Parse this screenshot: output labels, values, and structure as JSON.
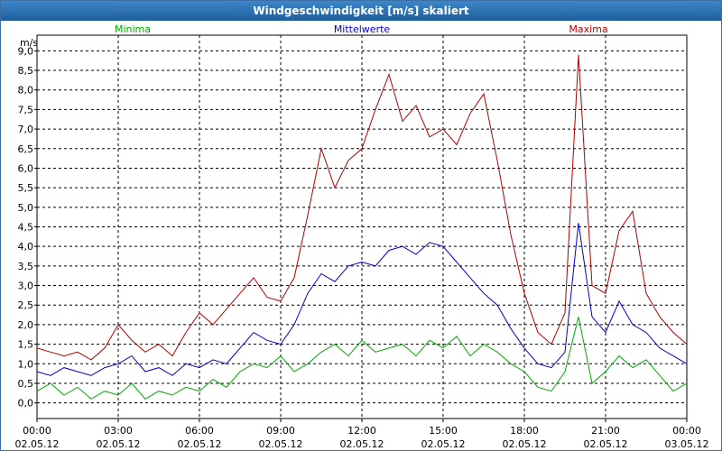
{
  "chart_data": {
    "type": "line",
    "title": "Windgeschwindigkeit [m/s] skaliert",
    "ylabel": "m/s",
    "ylim": [
      -0.4,
      9.4
    ],
    "yticks": [
      "0,0",
      "0,5",
      "1,0",
      "1,5",
      "2,0",
      "2,5",
      "3,0",
      "3,5",
      "4,0",
      "4,5",
      "5,0",
      "5,5",
      "6,0",
      "6,5",
      "7,0",
      "7,5",
      "8,0",
      "8,5",
      "9,0"
    ],
    "xticks": [
      {
        "time": "00:00",
        "date": "02.05.12"
      },
      {
        "time": "03:00",
        "date": "02.05.12"
      },
      {
        "time": "06:00",
        "date": "02.05.12"
      },
      {
        "time": "09:00",
        "date": "02.05.12"
      },
      {
        "time": "12:00",
        "date": "02.05.12"
      },
      {
        "time": "15:00",
        "date": "02.05.12"
      },
      {
        "time": "18:00",
        "date": "02.05.12"
      },
      {
        "time": "21:00",
        "date": "02.05.12"
      },
      {
        "time": "00:00",
        "date": "03.05.12"
      }
    ],
    "xlim": [
      0,
      24
    ],
    "grid": true,
    "series": [
      {
        "name": "Minima",
        "color": "#00aa00",
        "x": [
          0,
          0.5,
          1,
          1.5,
          2,
          2.5,
          3,
          3.5,
          4,
          4.5,
          5,
          5.5,
          6,
          6.5,
          7,
          7.5,
          8,
          8.5,
          9,
          9.5,
          10,
          10.5,
          11,
          11.5,
          12,
          12.5,
          13,
          13.5,
          14,
          14.5,
          15,
          15.5,
          16,
          16.5,
          17,
          17.5,
          18,
          18.5,
          19,
          19.5,
          20,
          20.5,
          21,
          21.5,
          22,
          22.5,
          23,
          23.5,
          24
        ],
        "values": [
          0.3,
          0.5,
          0.2,
          0.4,
          0.1,
          0.3,
          0.2,
          0.5,
          0.1,
          0.3,
          0.2,
          0.4,
          0.3,
          0.6,
          0.4,
          0.8,
          1.0,
          0.9,
          1.2,
          0.8,
          1.0,
          1.3,
          1.5,
          1.2,
          1.6,
          1.3,
          1.4,
          1.5,
          1.2,
          1.6,
          1.4,
          1.7,
          1.2,
          1.5,
          1.3,
          1.0,
          0.8,
          0.4,
          0.3,
          0.8,
          2.2,
          0.5,
          0.8,
          1.2,
          0.9,
          1.1,
          0.7,
          0.3,
          0.5
        ]
      },
      {
        "name": "Mittelwerte",
        "color": "#0000cc",
        "x": [
          0,
          0.5,
          1,
          1.5,
          2,
          2.5,
          3,
          3.5,
          4,
          4.5,
          5,
          5.5,
          6,
          6.5,
          7,
          7.5,
          8,
          8.5,
          9,
          9.5,
          10,
          10.5,
          11,
          11.5,
          12,
          12.5,
          13,
          13.5,
          14,
          14.5,
          15,
          15.5,
          16,
          16.5,
          17,
          17.5,
          18,
          18.5,
          19,
          19.5,
          20,
          20.5,
          21,
          21.5,
          22,
          22.5,
          23,
          23.5,
          24
        ],
        "values": [
          0.8,
          0.7,
          0.9,
          0.8,
          0.7,
          0.9,
          1.0,
          1.2,
          0.8,
          0.9,
          0.7,
          1.0,
          0.9,
          1.1,
          1.0,
          1.4,
          1.8,
          1.6,
          1.5,
          2.0,
          2.8,
          3.3,
          3.1,
          3.5,
          3.6,
          3.5,
          3.9,
          4.0,
          3.8,
          4.1,
          4.0,
          3.6,
          3.2,
          2.8,
          2.5,
          1.9,
          1.4,
          1.0,
          0.9,
          1.3,
          4.6,
          2.2,
          1.8,
          2.6,
          2.0,
          1.8,
          1.4,
          1.2,
          1.0
        ]
      },
      {
        "name": "Maxima",
        "color": "#b00000",
        "x": [
          0,
          0.5,
          1,
          1.5,
          2,
          2.5,
          3,
          3.5,
          4,
          4.5,
          5,
          5.5,
          6,
          6.5,
          7,
          7.5,
          8,
          8.5,
          9,
          9.5,
          10,
          10.5,
          11,
          11.5,
          12,
          12.5,
          13,
          13.5,
          14,
          14.5,
          15,
          15.5,
          16,
          16.5,
          17,
          17.5,
          18,
          18.5,
          19,
          19.5,
          20,
          20.5,
          21,
          21.5,
          22,
          22.5,
          23,
          23.5,
          24
        ],
        "values": [
          1.4,
          1.3,
          1.2,
          1.3,
          1.1,
          1.4,
          2.0,
          1.6,
          1.3,
          1.5,
          1.2,
          1.8,
          2.3,
          2.0,
          2.4,
          2.8,
          3.2,
          2.7,
          2.6,
          3.2,
          4.8,
          6.5,
          5.5,
          6.2,
          6.5,
          7.5,
          8.4,
          7.2,
          7.6,
          6.8,
          7.0,
          6.6,
          7.4,
          7.9,
          6.2,
          4.3,
          2.8,
          1.8,
          1.5,
          2.3,
          8.9,
          3.0,
          2.8,
          4.4,
          4.9,
          2.8,
          2.2,
          1.8,
          1.5
        ]
      }
    ]
  }
}
